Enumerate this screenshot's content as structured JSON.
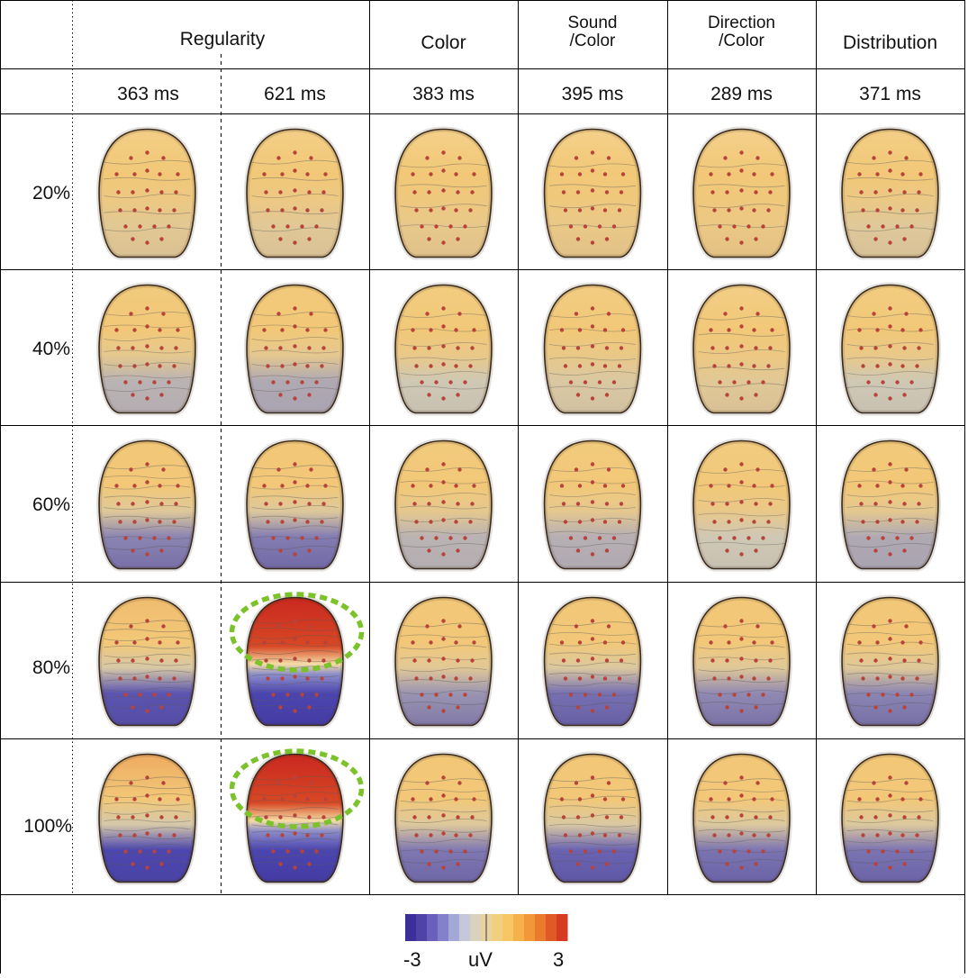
{
  "columns": [
    {
      "label": "Regularity",
      "span": 2
    },
    {
      "label": "Color",
      "span": 1
    },
    {
      "label": "Sound\n/Color",
      "span": 1
    },
    {
      "label": "Direction\n/Color",
      "span": 1
    },
    {
      "label": "Distribution",
      "span": 1
    }
  ],
  "latencies": [
    "363 ms",
    "621 ms",
    "383 ms",
    "395 ms",
    "289 ms",
    "371 ms"
  ],
  "rows": [
    "20%",
    "40%",
    "60%",
    "80%",
    "100%"
  ],
  "maps": [
    [
      0.18,
      0.2,
      0.12,
      0.1,
      0.08,
      0.22
    ],
    [
      0.4,
      0.45,
      0.3,
      0.28,
      0.2,
      0.3
    ],
    [
      0.62,
      0.66,
      0.4,
      0.42,
      0.3,
      0.45
    ],
    [
      0.85,
      0.98,
      0.55,
      0.72,
      0.6,
      0.62
    ],
    [
      0.92,
      1.0,
      0.68,
      0.78,
      0.7,
      0.7
    ]
  ],
  "highlighted": [
    [
      3,
      1
    ],
    [
      4,
      1
    ]
  ],
  "colorbar": {
    "min": "-3",
    "unit": "uV",
    "max": "3",
    "colors": [
      "#3d2f9a",
      "#5043a8",
      "#6a5fbb",
      "#8480c9",
      "#a3a8d6",
      "#c4c8d9",
      "#d9d2be",
      "#e8d2a0",
      "#f2cf80",
      "#f7c765",
      "#f6b14b",
      "#f2973a",
      "#ea7a2c",
      "#e05a25",
      "#d63a22"
    ]
  },
  "highlight_color": "#7cc22b"
}
